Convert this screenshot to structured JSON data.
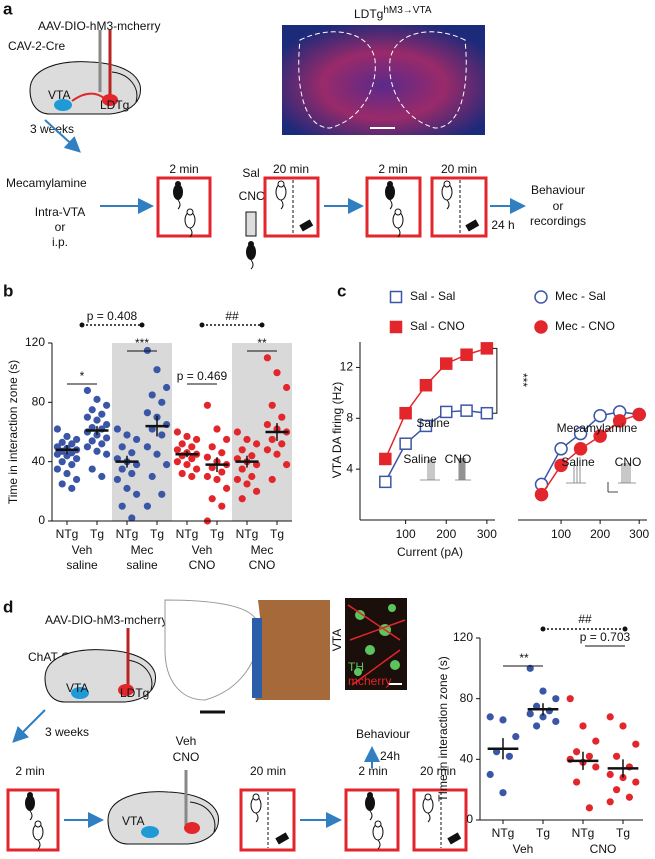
{
  "diagram_a": {
    "label": "a",
    "virus": "AAV-DIO-hM3-mcherry",
    "mouse_line": "CAV-2-Cre",
    "vta": "VTA",
    "ldtg": "LDTg",
    "delay": "3 weeks",
    "image_title": {
      "base": "LDTg",
      "sup": "hM3→VTA"
    },
    "drug": "Mecamylamine",
    "routes": [
      "Intra-VTA",
      "or",
      "i.p."
    ],
    "steps": [
      "2 min",
      "20 min",
      "2 min",
      "20 min"
    ],
    "injection": [
      "Sal",
      "CNO"
    ],
    "wait": "24 h",
    "outcome": [
      "Behaviour",
      "or",
      "recordings"
    ]
  },
  "diagram_d": {
    "label": "d",
    "virus": "AAV-DIO-hM3-mcherry",
    "mouse_line": "ChAT-Cre",
    "vta": "VTA",
    "ldtg": "LDTg",
    "delay": "3 weeks",
    "slice_region": "VTA",
    "stains": [
      "TH",
      "mcherry"
    ],
    "outcome": "Behaviour",
    "wait": "24h",
    "steps": [
      "2 min",
      "20 min",
      "2 min",
      "20 min"
    ],
    "injection": [
      "Veh",
      "CNO"
    ],
    "injection_site": "VTA"
  },
  "chart_data": [
    {
      "type": "strip",
      "label": "b",
      "ylabel": "Time in interaction zone (s)",
      "ylim": [
        0,
        120
      ],
      "yticks": [
        0,
        40,
        80,
        120
      ],
      "groups": [
        {
          "label_lines": [
            "Veh",
            "saline"
          ],
          "shaded": false,
          "conditions": [
            {
              "name": "NTg",
              "color": "#3b56a6",
              "values": [
                62,
                57,
                55,
                53,
                52,
                50,
                49,
                48,
                47,
                46,
                45,
                44,
                42,
                40,
                38,
                35,
                32,
                28,
                25,
                22
              ],
              "mean": 48,
              "sem": 3
            },
            {
              "name": "Tg",
              "color": "#3b56a6",
              "values": [
                88,
                82,
                78,
                75,
                72,
                70,
                68,
                65,
                63,
                62,
                60,
                58,
                56,
                54,
                52,
                50,
                47,
                45,
                35,
                30
              ],
              "mean": 61,
              "sem": 3
            }
          ]
        },
        {
          "label_lines": [
            "Mec",
            "saline"
          ],
          "shaded": true,
          "conditions": [
            {
              "name": "NTg",
              "color": "#3b56a6",
              "values": [
                62,
                58,
                55,
                50,
                46,
                42,
                40,
                38,
                35,
                32,
                28,
                22,
                18,
                10,
                2
              ],
              "mean": 40,
              "sem": 4
            },
            {
              "name": "Tg",
              "color": "#3b56a6",
              "values": [
                115,
                102,
                90,
                85,
                80,
                73,
                70,
                65,
                62,
                58,
                50,
                45,
                38,
                30,
                18,
                10
              ],
              "mean": 64,
              "sem": 7
            }
          ]
        },
        {
          "label_lines": [
            "Veh",
            "CNO"
          ],
          "shaded": false,
          "conditions": [
            {
              "name": "NTg",
              "color": "#e2262b",
              "values": [
                60,
                57,
                55,
                52,
                50,
                48,
                46,
                45,
                44,
                42,
                40,
                38,
                35,
                32,
                30
              ],
              "mean": 45,
              "sem": 2
            },
            {
              "name": "Tg",
              "color": "#e2262b",
              "values": [
                78,
                62,
                55,
                50,
                46,
                43,
                40,
                38,
                36,
                33,
                30,
                28,
                22,
                15,
                10,
                0
              ],
              "mean": 38,
              "sem": 5
            }
          ]
        },
        {
          "label_lines": [
            "Mec",
            "CNO"
          ],
          "shaded": true,
          "conditions": [
            {
              "name": "NTg",
              "color": "#e2262b",
              "values": [
                60,
                55,
                52,
                48,
                44,
                42,
                40,
                38,
                35,
                30,
                28,
                25,
                20,
                15
              ],
              "mean": 40,
              "sem": 4
            },
            {
              "name": "Tg",
              "color": "#e2262b",
              "values": [
                110,
                100,
                90,
                78,
                70,
                65,
                62,
                60,
                55,
                52,
                48,
                45,
                38,
                28
              ],
              "mean": 60,
              "sem": 6
            }
          ]
        }
      ],
      "annotations": [
        "*",
        "***",
        "p = 0.469",
        "**",
        "p = 0.408",
        "##"
      ]
    },
    {
      "type": "line",
      "label": "c",
      "xlabel": "Current (pA)",
      "ylabel": "VTA DA firing (Hz)",
      "xlim": [
        0,
        320
      ],
      "xticks": [
        100,
        200,
        300
      ],
      "ylim": [
        0,
        14
      ],
      "yticks": [
        4,
        8,
        12
      ],
      "x": [
        50,
        100,
        150,
        200,
        250,
        300
      ],
      "series": [
        {
          "name": "Sal - Sal",
          "color": "#3b56a6",
          "marker": "square",
          "filled": false,
          "values": [
            3,
            6,
            7.4,
            8.5,
            8.6,
            8.4
          ]
        },
        {
          "name": "Sal - CNO",
          "color": "#e2262b",
          "marker": "square",
          "filled": true,
          "values": [
            4.8,
            8.4,
            10.6,
            12.3,
            13,
            13.5
          ]
        }
      ],
      "annotations": [
        "***",
        "Saline",
        "Saline",
        "CNO"
      ]
    },
    {
      "type": "line",
      "xlim": [
        0,
        320
      ],
      "xticks": [
        100,
        200,
        300
      ],
      "ylim": [
        0,
        14
      ],
      "x": [
        50,
        100,
        150,
        200,
        250,
        300
      ],
      "series": [
        {
          "name": "Mec - Sal",
          "color": "#3b56a6",
          "marker": "circle",
          "filled": false,
          "values": [
            2.8,
            5.6,
            6.8,
            8.2,
            8.5,
            8.3
          ]
        },
        {
          "name": "Mec - CNO",
          "color": "#e2262b",
          "marker": "circle",
          "filled": true,
          "values": [
            2,
            4.3,
            5.6,
            6.6,
            7.8,
            8.3
          ]
        }
      ],
      "annotations": [
        "Mecamylamine",
        "Saline",
        "CNO"
      ]
    },
    {
      "type": "strip",
      "ylabel": "TIme in interaction zone (s)",
      "ylim": [
        0,
        120
      ],
      "yticks": [
        0,
        40,
        80,
        120
      ],
      "groups": [
        {
          "label_lines": [
            "Veh"
          ],
          "shaded": false,
          "conditions": [
            {
              "name": "NTg",
              "color": "#3b56a6",
              "values": [
                68,
                66,
                55,
                45,
                42,
                30,
                18
              ],
              "mean": 47,
              "sem": 7
            },
            {
              "name": "Tg",
              "color": "#3b56a6",
              "values": [
                100,
                85,
                80,
                75,
                72,
                70,
                68,
                65,
                62
              ],
              "mean": 73,
              "sem": 4
            }
          ]
        },
        {
          "label_lines": [
            "CNO"
          ],
          "shaded": false,
          "conditions": [
            {
              "name": "NTg",
              "color": "#e2262b",
              "values": [
                80,
                62,
                52,
                45,
                42,
                40,
                38,
                35,
                25,
                8
              ],
              "mean": 39,
              "sem": 6
            },
            {
              "name": "Tg",
              "color": "#e2262b",
              "values": [
                68,
                62,
                50,
                42,
                35,
                30,
                28,
                25,
                20,
                15,
                12
              ],
              "mean": 34,
              "sem": 6
            }
          ]
        }
      ],
      "annotations": [
        "**",
        "p = 0.703",
        "##"
      ]
    }
  ]
}
